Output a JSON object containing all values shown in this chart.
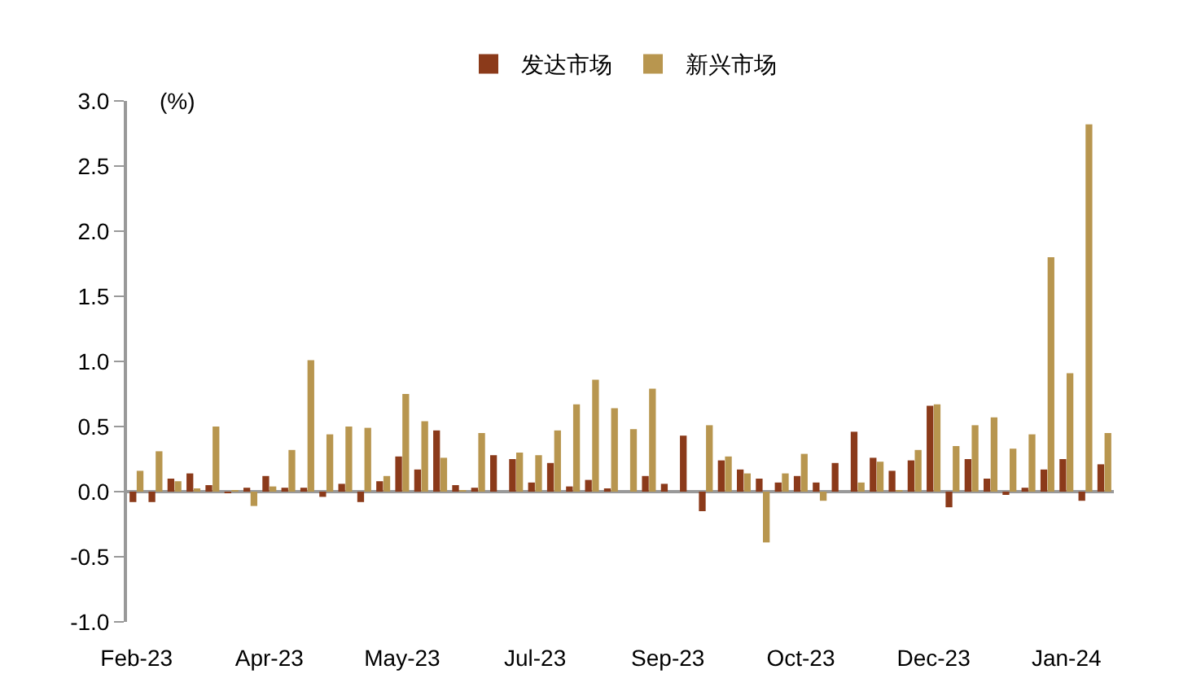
{
  "chart_data": {
    "type": "bar",
    "ylabel": "(%)",
    "categories": [
      "Feb-23",
      null,
      null,
      null,
      null,
      null,
      null,
      "Apr-23",
      null,
      null,
      null,
      null,
      null,
      null,
      "May-23",
      null,
      null,
      null,
      null,
      null,
      null,
      "Jul-23",
      null,
      null,
      null,
      null,
      null,
      null,
      "Sep-23",
      null,
      null,
      null,
      null,
      null,
      null,
      "Oct-23",
      null,
      null,
      null,
      null,
      null,
      null,
      "Dec-23",
      null,
      null,
      null,
      null,
      null,
      null,
      "Jan-24",
      null,
      null
    ],
    "series": [
      {
        "name": "发达市场",
        "color": "#8b3a1a",
        "values": [
          -0.08,
          -0.08,
          0.1,
          0.14,
          0.05,
          -0.01,
          0.03,
          0.12,
          0.03,
          0.03,
          -0.04,
          0.06,
          -0.08,
          0.08,
          0.27,
          0.17,
          0.47,
          0.05,
          0.03,
          0.28,
          0.25,
          0.07,
          0.22,
          0.04,
          0.09,
          0.02,
          0,
          0.12,
          0.06,
          0.43,
          -0.15,
          0.24,
          0.17,
          0.1,
          0.07,
          0.12,
          0.07,
          0.22,
          0.46,
          0.26,
          0.16,
          0.24,
          0.66,
          -0.12,
          0.25,
          0.1,
          -0.02,
          0.03,
          0.17,
          0.25,
          -0.07,
          0.21
        ]
      },
      {
        "name": "新兴市场",
        "color": "#b8964f",
        "values": [
          0.16,
          0.31,
          0.08,
          0.02,
          0.5,
          0.01,
          -0.11,
          0.04,
          0.32,
          1.01,
          0.44,
          0.5,
          0.49,
          0.12,
          0.75,
          0.54,
          0.26,
          0.01,
          0.45,
          0,
          0.3,
          0.28,
          0.47,
          0.67,
          0.86,
          0.64,
          0.48,
          0.79,
          0,
          0,
          0.51,
          0.27,
          0.14,
          -0.39,
          0.14,
          0.29,
          -0.07,
          0,
          0.07,
          0.23,
          0.01,
          0.32,
          0.67,
          0.35,
          0.51,
          0.57,
          0.33,
          0.44,
          1.8,
          0.91,
          2.82,
          0.45
        ]
      }
    ],
    "ylim": [
      -1,
      3
    ],
    "yticks": [
      {
        "value": -1,
        "label": "-1.0"
      },
      {
        "value": -0.5,
        "label": "-0.5"
      },
      {
        "value": 0,
        "label": "0.0"
      },
      {
        "value": 0.5,
        "label": "0.5"
      },
      {
        "value": 1,
        "label": "1.0"
      },
      {
        "value": 1.5,
        "label": "1.5"
      },
      {
        "value": 2,
        "label": "2.0"
      },
      {
        "value": 2.5,
        "label": "2.5"
      },
      {
        "value": 3,
        "label": "3.0"
      }
    ],
    "legend": "top"
  }
}
